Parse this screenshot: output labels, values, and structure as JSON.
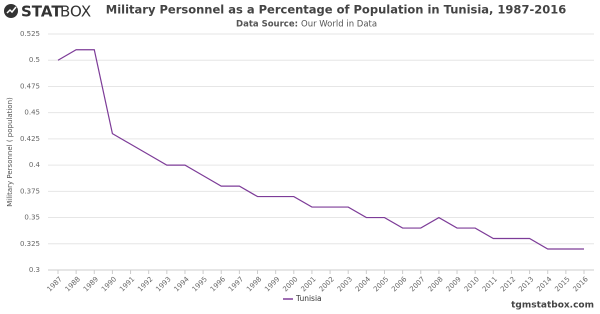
{
  "logo": {
    "bold": "STAT",
    "light": "BOX"
  },
  "footer": "tgmstatbox.com",
  "chart_data": {
    "type": "line",
    "title": "Military Personnel as a Percentage of Population in Tunisia, 1987-2016",
    "subtitle": {
      "label": "Data Source:",
      "source": "Our World in Data"
    },
    "y_label": "Military Personnel ( population)",
    "x": [
      1987,
      1988,
      1989,
      1990,
      1991,
      1992,
      1993,
      1994,
      1995,
      1996,
      1997,
      1998,
      1999,
      2000,
      2001,
      2002,
      2003,
      2004,
      2005,
      2006,
      2007,
      2008,
      2009,
      2010,
      2011,
      2012,
      2013,
      2014,
      2015,
      2016
    ],
    "series": [
      {
        "name": "Tunisia",
        "color": "#7d3c98",
        "values": [
          0.5,
          0.51,
          0.51,
          0.43,
          0.42,
          0.41,
          0.4,
          0.4,
          0.39,
          0.38,
          0.38,
          0.37,
          0.37,
          0.37,
          0.36,
          0.36,
          0.36,
          0.35,
          0.35,
          0.34,
          0.34,
          0.35,
          0.34,
          0.34,
          0.33,
          0.33,
          0.33,
          0.32,
          0.32,
          0.32
        ]
      }
    ],
    "xlim": [
      1987,
      2016
    ],
    "xticks": [
      1987,
      1988,
      1989,
      1990,
      1991,
      1992,
      1993,
      1994,
      1995,
      1996,
      1997,
      1998,
      1999,
      2000,
      2001,
      2002,
      2003,
      2004,
      2005,
      2006,
      2007,
      2008,
      2009,
      2010,
      2011,
      2012,
      2013,
      2014,
      2015,
      2016
    ],
    "ylim": [
      0.3,
      0.525
    ],
    "yticks": [
      0.3,
      0.325,
      0.35,
      0.375,
      0.4,
      0.425,
      0.45,
      0.475,
      0.5,
      0.525
    ],
    "grid": true
  }
}
